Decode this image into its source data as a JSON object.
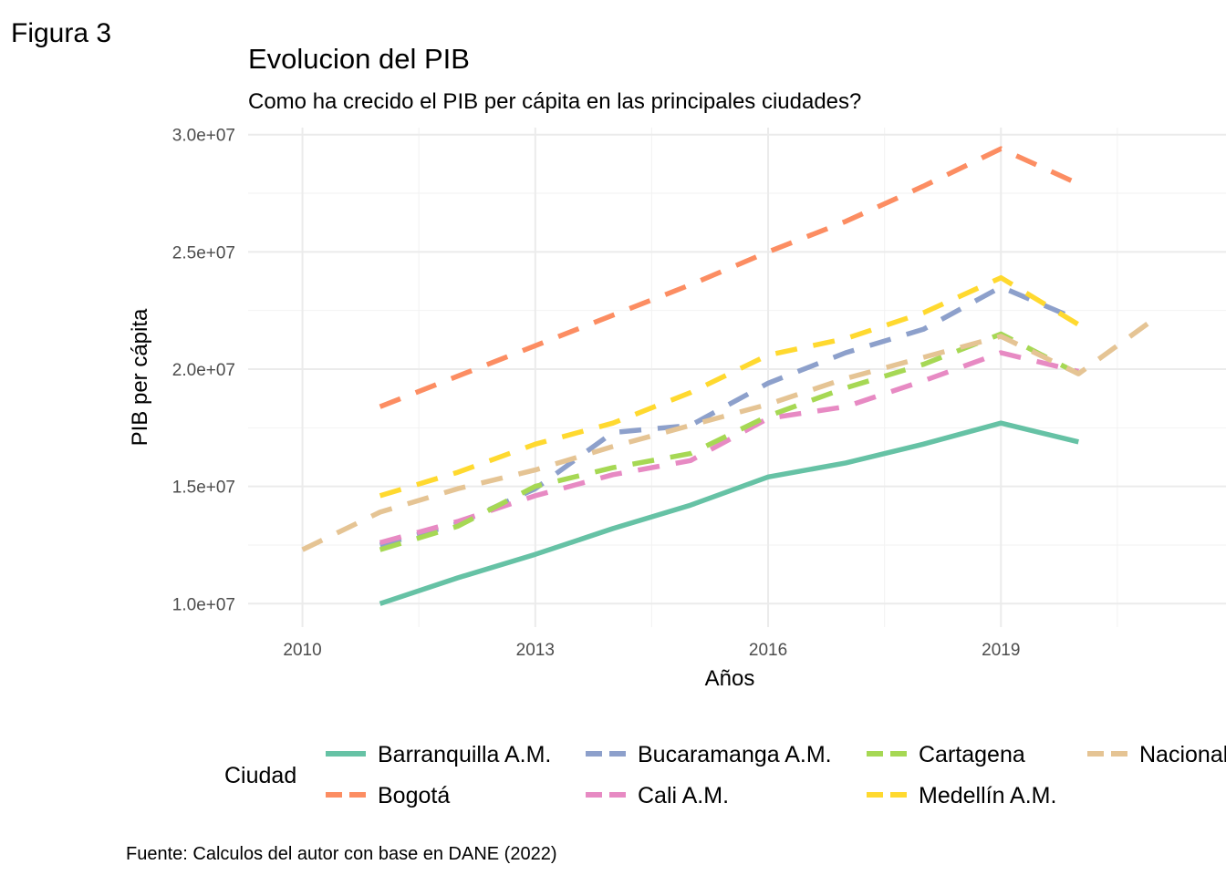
{
  "figure_label": "Figura 3",
  "caption": "Fuente: Calculos del autor con base en DANE (2022)",
  "chart_data": {
    "type": "line",
    "title": "Evolucion del PIB",
    "subtitle": "Como ha crecido el PIB per cápita en las principales ciudades?",
    "xlabel": "Años",
    "ylabel": "PIB per cápita",
    "xlim": [
      2009.3,
      2021.9
    ],
    "ylim": [
      9000000,
      30300000
    ],
    "x_ticks": [
      2010,
      2013,
      2016,
      2019
    ],
    "x_tick_labels": [
      "2010",
      "2013",
      "2016",
      "2019"
    ],
    "y_ticks": [
      10000000,
      15000000,
      20000000,
      25000000,
      30000000
    ],
    "y_tick_labels": [
      "1.0e+07",
      "1.5e+07",
      "2.0e+07",
      "2.5e+07",
      "3.0e+07"
    ],
    "grid": true,
    "legend_title": "Ciudad",
    "legend_position": "bottom",
    "series": [
      {
        "name": "Barranquilla A.M.",
        "color": "#66C2A5",
        "dash": "solid",
        "x": [
          2011,
          2012,
          2013,
          2014,
          2015,
          2016,
          2017,
          2018,
          2019,
          2020
        ],
        "values": [
          10000000,
          11100000,
          12100000,
          13200000,
          14200000,
          15400000,
          16000000,
          16800000,
          17700000,
          16900000
        ]
      },
      {
        "name": "Bogotá",
        "color": "#FC8D62",
        "dash": "dashed",
        "x": [
          2011,
          2012,
          2013,
          2014,
          2015,
          2016,
          2017,
          2018,
          2019,
          2020
        ],
        "values": [
          18400000,
          19700000,
          21000000,
          22300000,
          23600000,
          25000000,
          26300000,
          27800000,
          29400000,
          27900000
        ]
      },
      {
        "name": "Bucaramanga A.M.",
        "color": "#8DA0CB",
        "dash": "dashed",
        "x": [
          2011,
          2012,
          2013,
          2014,
          2015,
          2016,
          2017,
          2018,
          2019,
          2020
        ],
        "values": [
          12500000,
          13400000,
          14900000,
          17300000,
          17600000,
          19400000,
          20700000,
          21700000,
          23500000,
          22100000
        ]
      },
      {
        "name": "Cali A.M.",
        "color": "#E78AC3",
        "dash": "dashed",
        "x": [
          2011,
          2012,
          2013,
          2014,
          2015,
          2016,
          2017,
          2018,
          2019,
          2020
        ],
        "values": [
          12600000,
          13500000,
          14600000,
          15500000,
          16100000,
          17900000,
          18400000,
          19500000,
          20700000,
          19900000
        ]
      },
      {
        "name": "Cartagena",
        "color": "#A6D854",
        "dash": "dashed",
        "x": [
          2011,
          2012,
          2013,
          2014,
          2015,
          2016,
          2017,
          2018,
          2019,
          2020
        ],
        "values": [
          12300000,
          13300000,
          15000000,
          15800000,
          16400000,
          18000000,
          19200000,
          20200000,
          21500000,
          19800000
        ]
      },
      {
        "name": "Medellín A.M.",
        "color": "#FFD92F",
        "dash": "dashed",
        "x": [
          2011,
          2012,
          2013,
          2014,
          2015,
          2016,
          2017,
          2018,
          2019,
          2020
        ],
        "values": [
          14600000,
          15600000,
          16800000,
          17700000,
          19000000,
          20600000,
          21300000,
          22400000,
          23900000,
          21900000
        ]
      },
      {
        "name": "Nacional",
        "color": "#E5C494",
        "dash": "dashed",
        "x": [
          2010,
          2011,
          2012,
          2013,
          2014,
          2015,
          2016,
          2017,
          2018,
          2019,
          2020,
          2021
        ],
        "values": [
          12300000,
          13900000,
          14900000,
          15700000,
          16700000,
          17600000,
          18500000,
          19600000,
          20500000,
          21400000,
          19800000,
          22200000
        ]
      }
    ]
  }
}
